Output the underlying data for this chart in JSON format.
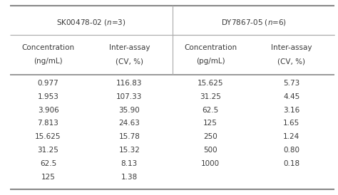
{
  "group1_label": "SK00478-02 ($\\it{n}$=3)",
  "group2_label": "DY7867-05 ($\\it{n}$=6)",
  "col_headers": [
    [
      "Concentration",
      "(ng/mL)"
    ],
    [
      "Inter-assay",
      "(CV, %)"
    ],
    [
      "Concentration",
      "(pg/mL)"
    ],
    [
      "Inter-assay",
      "(CV, %)"
    ]
  ],
  "group1_data": [
    [
      "0.977",
      "116.83"
    ],
    [
      "1.953",
      "107.33"
    ],
    [
      "3.906",
      "35.90"
    ],
    [
      "7.813",
      "24.63"
    ],
    [
      "15.625",
      "15.78"
    ],
    [
      "31.25",
      "15.32"
    ],
    [
      "62.5",
      "8.13"
    ],
    [
      "125",
      "1.38"
    ]
  ],
  "group2_data": [
    [
      "15.625",
      "5.73"
    ],
    [
      "31.25",
      "4.45"
    ],
    [
      "62.5",
      "3.16"
    ],
    [
      "125",
      "1.65"
    ],
    [
      "250",
      "1.24"
    ],
    [
      "500",
      "0.80"
    ],
    [
      "1000",
      "0.18"
    ],
    [
      "",
      ""
    ]
  ],
  "bg_color": "#ffffff",
  "text_color": "#3a3a3a",
  "line_color_heavy": "#888888",
  "line_color_light": "#aaaaaa",
  "font_size": 7.5,
  "n_data_rows": 8,
  "figsize": [
    4.74,
    2.74
  ],
  "dpi": 100
}
